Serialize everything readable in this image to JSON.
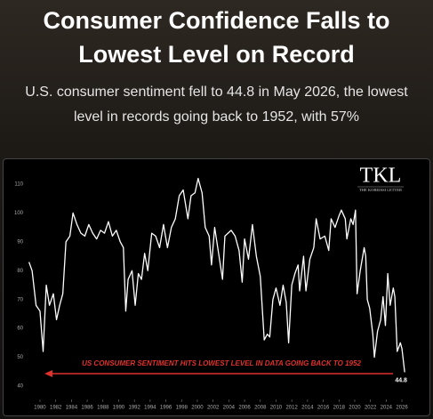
{
  "chart_data": {
    "type": "line",
    "title": "Consumer Confidence Falls to Lowest Level on Record",
    "subtitle": "U.S. consumer sentiment fell to 44.8 in May 2026, the lowest level in records going back to 1952, with 57%",
    "annotation": "US CONSUMER SENTIMENT HITS LOWEST LEVEL IN DATA GOING BACK TO 1952",
    "xlim": [
      1978.5,
      2027
    ],
    "ylim": [
      35,
      115
    ],
    "xticks": [
      1980,
      1982,
      1984,
      1986,
      1988,
      1990,
      1992,
      1994,
      1996,
      1998,
      2000,
      2002,
      2004,
      2006,
      2008,
      2010,
      2012,
      2014,
      2016,
      2018,
      2020,
      2022,
      2024,
      2026
    ],
    "yticks": [
      40,
      50,
      60,
      70,
      80,
      90,
      100,
      110
    ],
    "grid": false,
    "series": [
      {
        "color": "#ffffff",
        "x": [
          1978.6,
          1979,
          1979.5,
          1980,
          1980.4,
          1980.8,
          1981.2,
          1981.7,
          1982.1,
          1982.5,
          1982.9,
          1983.3,
          1983.8,
          1984.2,
          1984.7,
          1985.2,
          1985.7,
          1986.2,
          1986.7,
          1987.2,
          1987.7,
          1988.2,
          1988.7,
          1989.2,
          1989.7,
          1990.2,
          1990.6,
          1990.9,
          1991.2,
          1991.7,
          1992.1,
          1992.5,
          1992.9,
          1993.3,
          1993.7,
          1994.2,
          1994.7,
          1995.2,
          1995.7,
          1996.2,
          1996.7,
          1997.2,
          1997.7,
          1998.2,
          1998.8,
          1999.2,
          1999.7,
          2000.1,
          2000.6,
          2001,
          2001.5,
          2001.8,
          2002.2,
          2002.7,
          2003.2,
          2003.5,
          2003.9,
          2004.3,
          2004.8,
          2005.3,
          2005.7,
          2006,
          2006.5,
          2007,
          2007.5,
          2008,
          2008.5,
          2008.9,
          2009.2,
          2009.6,
          2010,
          2010.5,
          2010.9,
          2011.3,
          2011.6,
          2012,
          2012.4,
          2012.8,
          2013,
          2013.5,
          2013.8,
          2014.3,
          2014.8,
          2015.1,
          2015.6,
          2016.2,
          2016.7,
          2017,
          2017.5,
          2018,
          2018.3,
          2018.8,
          2019,
          2019.5,
          2019.8,
          2020.1,
          2020.3,
          2020.7,
          2021.2,
          2021.4,
          2021.6,
          2021.9,
          2022.3,
          2022.5,
          2022.9,
          2023.3,
          2023.6,
          2023.9,
          2024.2,
          2024.5,
          2024.9,
          2025.1,
          2025.4,
          2025.8,
          2026,
          2026.35
        ],
        "values": [
          83,
          80,
          68,
          66,
          52,
          75,
          68,
          72,
          63,
          68,
          72,
          90,
          92,
          100,
          96,
          93,
          92,
          96,
          93,
          91,
          94,
          93,
          97,
          92,
          94,
          90,
          88,
          66,
          77,
          80,
          68,
          79,
          77,
          86,
          80,
          93,
          92,
          88,
          96,
          88,
          95,
          98,
          106,
          108,
          98,
          106,
          107,
          112,
          107,
          95,
          92,
          82,
          95,
          86,
          77,
          92,
          93,
          94,
          92,
          87,
          76,
          91,
          84,
          96,
          85,
          78,
          56,
          58,
          57,
          70,
          74,
          68,
          75,
          69,
          55,
          75,
          79,
          82,
          73,
          85,
          73,
          84,
          88,
          98,
          91,
          92,
          87,
          98,
          95,
          99,
          101,
          98,
          91,
          98,
          96,
          101,
          72,
          80,
          88,
          85,
          70,
          67,
          58,
          50,
          59,
          63,
          71,
          61,
          79,
          68,
          74,
          71,
          52,
          55,
          53,
          44.8
        ]
      }
    ]
  },
  "logo": {
    "mark": "TKL",
    "name": "THE KOBEISSI LETTER"
  }
}
